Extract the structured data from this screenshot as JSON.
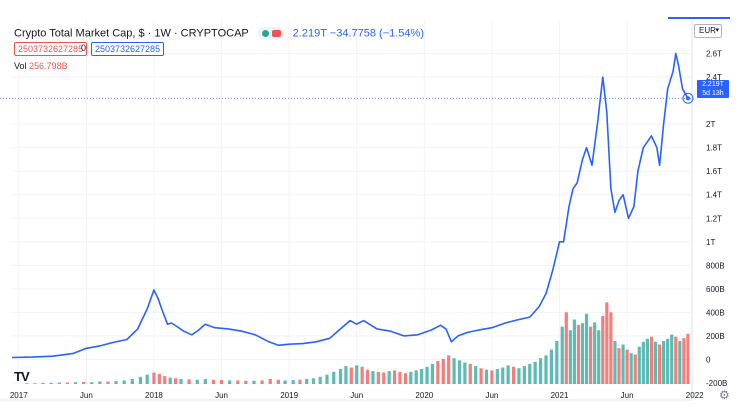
{
  "header": {
    "title": "Crypto Total Market Cap, $ · 1W · CRYPTOCAP",
    "last_value": "2.219T",
    "change": "−34.7758 (−1.54%)",
    "input_left": "2503732627285",
    "input_zero": "0",
    "input_right": "2503732627285",
    "vol_label": "Vol",
    "vol_value": "256.798B"
  },
  "currency": {
    "label": "EUR",
    "caret": "▾"
  },
  "last_price_label": {
    "value": "2.219T",
    "countdown": "5d 13h"
  },
  "logo": "TV",
  "settings_icon": "gear-icon",
  "colors": {
    "line": "#2962ff",
    "vol_up": "#26a69a",
    "vol_down": "#ef5350",
    "grid": "#f0f3fa"
  },
  "chart_data": {
    "type": "line",
    "title": "Crypto Total Market Cap, $ · 1W · CRYPTOCAP",
    "y_unit": "USD",
    "ylim": [
      -200000000000,
      2800000000000
    ],
    "y_ticks": [
      {
        "v": 2600000000000,
        "label": "2.6T"
      },
      {
        "v": 2400000000000,
        "label": "2.4T"
      },
      {
        "v": 2000000000000,
        "label": "2T"
      },
      {
        "v": 1800000000000,
        "label": "1.8T"
      },
      {
        "v": 1600000000000,
        "label": "1.6T"
      },
      {
        "v": 1400000000000,
        "label": "1.4T"
      },
      {
        "v": 1200000000000,
        "label": "1.2T"
      },
      {
        "v": 1000000000000,
        "label": "1T"
      },
      {
        "v": 800000000000,
        "label": "800B"
      },
      {
        "v": 600000000000,
        "label": "600B"
      },
      {
        "v": 400000000000,
        "label": "400B"
      },
      {
        "v": 200000000000,
        "label": "200B"
      },
      {
        "v": 0,
        "label": "0"
      },
      {
        "v": -200000000000,
        "label": "-200B"
      }
    ],
    "x_ticks": [
      {
        "t": 2017.0,
        "label": "2017"
      },
      {
        "t": 2017.5,
        "label": "Jun"
      },
      {
        "t": 2018.0,
        "label": "2018"
      },
      {
        "t": 2018.5,
        "label": "Jun"
      },
      {
        "t": 2019.0,
        "label": "2019"
      },
      {
        "t": 2019.5,
        "label": "Jun"
      },
      {
        "t": 2020.0,
        "label": "2020"
      },
      {
        "t": 2020.5,
        "label": "Jun"
      },
      {
        "t": 2021.0,
        "label": "2021"
      },
      {
        "t": 2021.5,
        "label": "Jun"
      },
      {
        "t": 2022.0,
        "label": "2022"
      }
    ],
    "xlim": [
      2016.95,
      2021.98
    ],
    "series": [
      {
        "points": [
          [
            2016.95,
            17000000000
          ],
          [
            2017.1,
            20000000000
          ],
          [
            2017.25,
            28000000000
          ],
          [
            2017.4,
            50000000000
          ],
          [
            2017.5,
            95000000000
          ],
          [
            2017.6,
            115000000000
          ],
          [
            2017.7,
            145000000000
          ],
          [
            2017.8,
            170000000000
          ],
          [
            2017.88,
            260000000000
          ],
          [
            2017.95,
            430000000000
          ],
          [
            2018.0,
            590000000000
          ],
          [
            2018.03,
            520000000000
          ],
          [
            2018.06,
            420000000000
          ],
          [
            2018.1,
            300000000000
          ],
          [
            2018.13,
            310000000000
          ],
          [
            2018.17,
            280000000000
          ],
          [
            2018.22,
            240000000000
          ],
          [
            2018.28,
            210000000000
          ],
          [
            2018.33,
            250000000000
          ],
          [
            2018.38,
            300000000000
          ],
          [
            2018.45,
            270000000000
          ],
          [
            2018.55,
            260000000000
          ],
          [
            2018.65,
            240000000000
          ],
          [
            2018.75,
            210000000000
          ],
          [
            2018.85,
            150000000000
          ],
          [
            2018.92,
            120000000000
          ],
          [
            2019.0,
            130000000000
          ],
          [
            2019.1,
            135000000000
          ],
          [
            2019.2,
            150000000000
          ],
          [
            2019.3,
            180000000000
          ],
          [
            2019.38,
            260000000000
          ],
          [
            2019.45,
            330000000000
          ],
          [
            2019.5,
            300000000000
          ],
          [
            2019.55,
            330000000000
          ],
          [
            2019.65,
            260000000000
          ],
          [
            2019.75,
            240000000000
          ],
          [
            2019.85,
            200000000000
          ],
          [
            2019.95,
            210000000000
          ],
          [
            2020.05,
            250000000000
          ],
          [
            2020.12,
            290000000000
          ],
          [
            2020.16,
            260000000000
          ],
          [
            2020.2,
            150000000000
          ],
          [
            2020.25,
            200000000000
          ],
          [
            2020.32,
            230000000000
          ],
          [
            2020.4,
            250000000000
          ],
          [
            2020.5,
            270000000000
          ],
          [
            2020.6,
            310000000000
          ],
          [
            2020.7,
            340000000000
          ],
          [
            2020.78,
            360000000000
          ],
          [
            2020.85,
            450000000000
          ],
          [
            2020.9,
            560000000000
          ],
          [
            2020.95,
            760000000000
          ],
          [
            2021.0,
            1000000000000
          ],
          [
            2021.03,
            1000000000000
          ],
          [
            2021.07,
            1300000000000
          ],
          [
            2021.1,
            1450000000000
          ],
          [
            2021.13,
            1500000000000
          ],
          [
            2021.17,
            1700000000000
          ],
          [
            2021.2,
            1800000000000
          ],
          [
            2021.24,
            1650000000000
          ],
          [
            2021.28,
            2000000000000
          ],
          [
            2021.32,
            2400000000000
          ],
          [
            2021.35,
            2100000000000
          ],
          [
            2021.38,
            1450000000000
          ],
          [
            2021.41,
            1250000000000
          ],
          [
            2021.44,
            1350000000000
          ],
          [
            2021.47,
            1400000000000
          ],
          [
            2021.51,
            1200000000000
          ],
          [
            2021.55,
            1300000000000
          ],
          [
            2021.58,
            1600000000000
          ],
          [
            2021.62,
            1800000000000
          ],
          [
            2021.65,
            1850000000000
          ],
          [
            2021.68,
            1900000000000
          ],
          [
            2021.72,
            1800000000000
          ],
          [
            2021.74,
            1650000000000
          ],
          [
            2021.77,
            2000000000000
          ],
          [
            2021.8,
            2300000000000
          ],
          [
            2021.84,
            2450000000000
          ],
          [
            2021.86,
            2600000000000
          ],
          [
            2021.88,
            2500000000000
          ],
          [
            2021.91,
            2300000000000
          ],
          [
            2021.95,
            2220000000000
          ]
        ]
      }
    ],
    "volume": {
      "bars": [
        [
          2017.06,
          2,
          1
        ],
        [
          2017.12,
          2,
          1
        ],
        [
          2017.18,
          3,
          0
        ],
        [
          2017.24,
          3,
          1
        ],
        [
          2017.3,
          4,
          1
        ],
        [
          2017.36,
          4,
          0
        ],
        [
          2017.42,
          5,
          1
        ],
        [
          2017.48,
          6,
          0
        ],
        [
          2017.54,
          5,
          1
        ],
        [
          2017.6,
          7,
          1
        ],
        [
          2017.66,
          7,
          0
        ],
        [
          2017.72,
          8,
          1
        ],
        [
          2017.78,
          10,
          1
        ],
        [
          2017.84,
          14,
          1
        ],
        [
          2017.9,
          20,
          1
        ],
        [
          2017.95,
          26,
          1
        ],
        [
          2018.0,
          32,
          0
        ],
        [
          2018.04,
          28,
          0
        ],
        [
          2018.08,
          22,
          0
        ],
        [
          2018.12,
          18,
          1
        ],
        [
          2018.16,
          16,
          0
        ],
        [
          2018.2,
          14,
          1
        ],
        [
          2018.26,
          13,
          0
        ],
        [
          2018.32,
          12,
          1
        ],
        [
          2018.38,
          14,
          1
        ],
        [
          2018.44,
          12,
          0
        ],
        [
          2018.5,
          11,
          0
        ],
        [
          2018.56,
          10,
          1
        ],
        [
          2018.62,
          10,
          0
        ],
        [
          2018.68,
          9,
          0
        ],
        [
          2018.74,
          9,
          1
        ],
        [
          2018.8,
          10,
          0
        ],
        [
          2018.86,
          14,
          0
        ],
        [
          2018.92,
          12,
          0
        ],
        [
          2018.97,
          10,
          1
        ],
        [
          2019.03,
          11,
          1
        ],
        [
          2019.08,
          12,
          0
        ],
        [
          2019.13,
          14,
          1
        ],
        [
          2019.18,
          16,
          1
        ],
        [
          2019.23,
          20,
          1
        ],
        [
          2019.28,
          26,
          1
        ],
        [
          2019.33,
          34,
          1
        ],
        [
          2019.38,
          42,
          1
        ],
        [
          2019.42,
          50,
          1
        ],
        [
          2019.46,
          46,
          0
        ],
        [
          2019.5,
          52,
          1
        ],
        [
          2019.54,
          48,
          0
        ],
        [
          2019.58,
          40,
          0
        ],
        [
          2019.62,
          36,
          1
        ],
        [
          2019.66,
          34,
          0
        ],
        [
          2019.7,
          32,
          0
        ],
        [
          2019.74,
          36,
          1
        ],
        [
          2019.78,
          38,
          0
        ],
        [
          2019.82,
          34,
          0
        ],
        [
          2019.86,
          30,
          0
        ],
        [
          2019.9,
          34,
          1
        ],
        [
          2019.94,
          38,
          1
        ],
        [
          2019.98,
          42,
          1
        ],
        [
          2020.02,
          48,
          1
        ],
        [
          2020.06,
          56,
          1
        ],
        [
          2020.1,
          64,
          0
        ],
        [
          2020.14,
          70,
          0
        ],
        [
          2020.18,
          80,
          0
        ],
        [
          2020.22,
          72,
          1
        ],
        [
          2020.26,
          66,
          1
        ],
        [
          2020.3,
          60,
          1
        ],
        [
          2020.34,
          56,
          0
        ],
        [
          2020.38,
          50,
          1
        ],
        [
          2020.42,
          44,
          0
        ],
        [
          2020.46,
          40,
          1
        ],
        [
          2020.5,
          38,
          0
        ],
        [
          2020.54,
          42,
          1
        ],
        [
          2020.58,
          46,
          1
        ],
        [
          2020.62,
          52,
          1
        ],
        [
          2020.66,
          48,
          0
        ],
        [
          2020.7,
          44,
          1
        ],
        [
          2020.74,
          50,
          1
        ],
        [
          2020.78,
          56,
          1
        ],
        [
          2020.82,
          62,
          1
        ],
        [
          2020.86,
          72,
          1
        ],
        [
          2020.9,
          80,
          1
        ],
        [
          2020.94,
          96,
          1
        ],
        [
          2020.98,
          120,
          1
        ],
        [
          2021.02,
          160,
          1
        ],
        [
          2021.05,
          200,
          0
        ],
        [
          2021.08,
          150,
          1
        ],
        [
          2021.11,
          180,
          1
        ],
        [
          2021.14,
          165,
          0
        ],
        [
          2021.17,
          170,
          1
        ],
        [
          2021.2,
          196,
          1
        ],
        [
          2021.23,
          160,
          0
        ],
        [
          2021.26,
          172,
          1
        ],
        [
          2021.29,
          150,
          1
        ],
        [
          2021.32,
          190,
          0
        ],
        [
          2021.35,
          228,
          0
        ],
        [
          2021.38,
          200,
          0
        ],
        [
          2021.41,
          120,
          1
        ],
        [
          2021.44,
          100,
          0
        ],
        [
          2021.47,
          110,
          1
        ],
        [
          2021.5,
          96,
          0
        ],
        [
          2021.53,
          86,
          1
        ],
        [
          2021.56,
          82,
          0
        ],
        [
          2021.59,
          104,
          1
        ],
        [
          2021.62,
          118,
          1
        ],
        [
          2021.65,
          126,
          1
        ],
        [
          2021.68,
          132,
          0
        ],
        [
          2021.71,
          118,
          1
        ],
        [
          2021.74,
          110,
          0
        ],
        [
          2021.77,
          120,
          1
        ],
        [
          2021.8,
          126,
          1
        ],
        [
          2021.83,
          138,
          1
        ],
        [
          2021.86,
          132,
          0
        ],
        [
          2021.89,
          120,
          1
        ],
        [
          2021.92,
          128,
          0
        ],
        [
          2021.95,
          140,
          0
        ]
      ],
      "ylim_units": [
        0,
        256.798
      ],
      "unit": "B"
    },
    "last_value": 2219000000000
  }
}
